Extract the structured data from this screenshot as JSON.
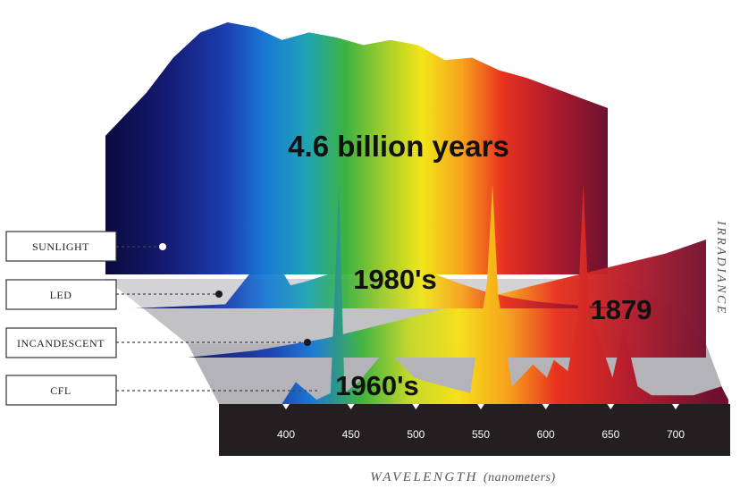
{
  "chart_data": {
    "type": "area",
    "xlabel": "WAVELENGTH",
    "xlabel_unit": "(nanometers)",
    "ylabel": "IRRADIANCE",
    "x_ticks": [
      400,
      450,
      500,
      550,
      600,
      650,
      700
    ],
    "xlim": [
      350,
      730
    ],
    "sources": [
      {
        "name": "SUNLIGHT",
        "era": "4.6 billion years"
      },
      {
        "name": "LED",
        "era": "1980's"
      },
      {
        "name": "INCANDESCENT",
        "era": "1879"
      },
      {
        "name": "CFL",
        "era": "1960's"
      }
    ],
    "series": [
      {
        "name": "SUNLIGHT",
        "x": [
          350,
          380,
          400,
          420,
          440,
          460,
          480,
          500,
          520,
          540,
          560,
          580,
          600,
          620,
          640,
          660,
          680,
          700,
          720
        ],
        "y": [
          0.55,
          0.72,
          0.86,
          0.96,
          1.0,
          0.98,
          0.93,
          0.96,
          0.94,
          0.91,
          0.93,
          0.91,
          0.85,
          0.86,
          0.81,
          0.78,
          0.74,
          0.7,
          0.66
        ]
      },
      {
        "name": "LED",
        "x": [
          350,
          420,
          440,
          450,
          460,
          470,
          480,
          500,
          520,
          540,
          560,
          580,
          600,
          620,
          640,
          660,
          680,
          700,
          720
        ],
        "y": [
          0.0,
          0.05,
          0.45,
          1.0,
          0.55,
          0.28,
          0.32,
          0.42,
          0.52,
          0.55,
          0.52,
          0.42,
          0.3,
          0.2,
          0.13,
          0.08,
          0.05,
          0.03,
          0.0
        ]
      },
      {
        "name": "INCANDESCENT",
        "x": [
          350,
          400,
          450,
          500,
          550,
          600,
          650,
          700,
          730
        ],
        "y": [
          0.0,
          0.06,
          0.16,
          0.3,
          0.45,
          0.6,
          0.74,
          0.88,
          1.0
        ]
      },
      {
        "name": "CFL",
        "x": [
          350,
          395,
          405,
          420,
          430,
          436,
          440,
          450,
          470,
          490,
          500,
          530,
          542,
          546,
          550,
          560,
          575,
          585,
          590,
          600,
          607,
          611,
          615,
          625,
          632,
          640,
          650,
          660,
          690,
          710,
          715
        ],
        "y": [
          0.0,
          0.0,
          0.1,
          0.02,
          0.05,
          1.0,
          0.05,
          0.1,
          0.25,
          0.12,
          0.1,
          0.05,
          0.55,
          1.0,
          0.5,
          0.08,
          0.18,
          0.12,
          0.2,
          0.15,
          0.4,
          1.0,
          0.45,
          0.25,
          0.12,
          0.35,
          0.08,
          0.04,
          0.04,
          0.08,
          0.02
        ]
      }
    ]
  }
}
